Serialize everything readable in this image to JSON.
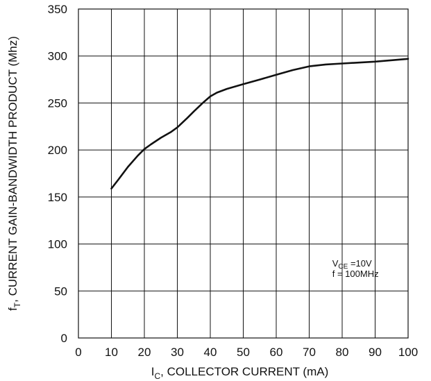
{
  "chart_data": {
    "type": "line",
    "xlabel": {
      "main": "I",
      "sub": "C",
      "rest": ", COLLECTOR CURRENT (mA)"
    },
    "ylabel": {
      "main": "f",
      "sub": "T",
      "rest": ", CURRENT GAIN-BANDWIDTH PRODUCT (Mhz)"
    },
    "xlim": [
      0,
      100
    ],
    "ylim": [
      0,
      350
    ],
    "xticks": [
      0,
      10,
      20,
      30,
      40,
      50,
      60,
      70,
      80,
      90,
      100
    ],
    "yticks": [
      0,
      50,
      100,
      150,
      200,
      250,
      300,
      350
    ],
    "grid": true,
    "series": [
      {
        "x": [
          10,
          12,
          15,
          18,
          20,
          22,
          25,
          28,
          30,
          33,
          35,
          38,
          40,
          42,
          45,
          50,
          55,
          60,
          65,
          70,
          75,
          80,
          90,
          100
        ],
        "y": [
          159,
          168,
          182,
          194,
          201,
          206,
          213,
          219,
          224,
          234,
          241,
          251,
          257,
          261,
          265,
          270,
          275,
          280,
          285,
          289,
          291,
          292,
          294,
          297
        ]
      }
    ],
    "annotation": {
      "line1": {
        "main": "V",
        "sub": "CE",
        "rest": " =10V"
      },
      "line2": "f = 100MHz"
    }
  }
}
